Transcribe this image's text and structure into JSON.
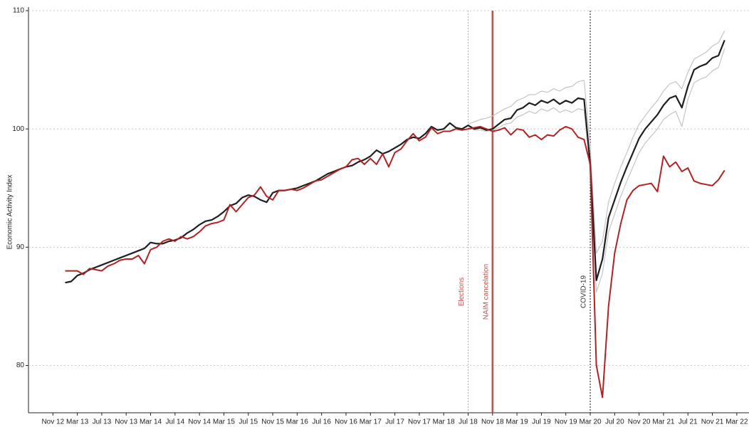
{
  "chart_data": {
    "type": "line",
    "y_label": "Economic Activity Index",
    "x": [
      "2013-01",
      "2013-02",
      "2013-03",
      "2013-04",
      "2013-05",
      "2013-06",
      "2013-07",
      "2013-08",
      "2013-09",
      "2013-10",
      "2013-11",
      "2013-12",
      "2014-01",
      "2014-02",
      "2014-03",
      "2014-04",
      "2014-05",
      "2014-06",
      "2014-07",
      "2014-08",
      "2014-09",
      "2014-10",
      "2014-11",
      "2014-12",
      "2015-01",
      "2015-02",
      "2015-03",
      "2015-04",
      "2015-05",
      "2015-06",
      "2015-07",
      "2015-08",
      "2015-09",
      "2015-10",
      "2015-11",
      "2015-12",
      "2016-01",
      "2016-02",
      "2016-03",
      "2016-04",
      "2016-05",
      "2016-06",
      "2016-07",
      "2016-08",
      "2016-09",
      "2016-10",
      "2016-11",
      "2016-12",
      "2017-01",
      "2017-02",
      "2017-03",
      "2017-04",
      "2017-05",
      "2017-06",
      "2017-07",
      "2017-08",
      "2017-09",
      "2017-10",
      "2017-11",
      "2017-12",
      "2018-01",
      "2018-02",
      "2018-03",
      "2018-04",
      "2018-05",
      "2018-06",
      "2018-07",
      "2018-08",
      "2018-09",
      "2018-10",
      "2018-11",
      "2018-12",
      "2019-01",
      "2019-02",
      "2019-03",
      "2019-04",
      "2019-05",
      "2019-06",
      "2019-07",
      "2019-08",
      "2019-09",
      "2019-10",
      "2019-11",
      "2019-12",
      "2020-01",
      "2020-02",
      "2020-03",
      "2020-04",
      "2020-05",
      "2020-06",
      "2020-07",
      "2020-08",
      "2020-09",
      "2020-10",
      "2020-11",
      "2020-12",
      "2021-01",
      "2021-02",
      "2021-03",
      "2021-04",
      "2021-05",
      "2021-06",
      "2021-07",
      "2021-08",
      "2021-09",
      "2021-10",
      "2021-11",
      "2021-12",
      "2022-01"
    ],
    "series": [
      {
        "color": "#c4c4c4",
        "width": 1.2,
        "values": [
          null,
          null,
          null,
          null,
          null,
          null,
          null,
          null,
          null,
          null,
          null,
          null,
          null,
          null,
          null,
          null,
          null,
          null,
          null,
          null,
          null,
          null,
          null,
          null,
          null,
          null,
          null,
          null,
          null,
          null,
          null,
          null,
          null,
          null,
          null,
          null,
          null,
          null,
          null,
          null,
          null,
          null,
          null,
          null,
          null,
          null,
          null,
          null,
          null,
          null,
          null,
          null,
          null,
          null,
          null,
          null,
          null,
          null,
          null,
          null,
          null,
          null,
          null,
          null,
          null,
          null,
          100.4,
          100.6,
          100.8,
          100.9,
          101.1,
          101.4,
          101.7,
          101.9,
          102.4,
          102.6,
          102.9,
          102.9,
          103.2,
          103.1,
          103.4,
          103.2,
          103.5,
          103.6,
          104.0,
          104.1,
          98.5,
          89.5,
          90.5,
          93.8,
          95.4,
          96.8,
          98.0,
          99.3,
          100.4,
          101.1,
          101.8,
          102.4,
          103.2,
          103.8,
          104.0,
          103.4,
          104.8,
          105.9,
          106.2,
          106.5,
          107.0,
          107.3,
          108.3
        ]
      },
      {
        "color": "#c4c4c4",
        "width": 1.2,
        "values": [
          null,
          null,
          null,
          null,
          null,
          null,
          null,
          null,
          null,
          null,
          null,
          null,
          null,
          null,
          null,
          null,
          null,
          null,
          null,
          null,
          null,
          null,
          null,
          null,
          null,
          null,
          null,
          null,
          null,
          null,
          null,
          null,
          null,
          null,
          null,
          null,
          null,
          null,
          null,
          null,
          null,
          null,
          null,
          null,
          null,
          null,
          null,
          null,
          null,
          null,
          null,
          null,
          null,
          null,
          null,
          null,
          null,
          null,
          null,
          null,
          null,
          null,
          null,
          null,
          null,
          null,
          100.1,
          99.9,
          99.9,
          99.8,
          99.9,
          100.1,
          100.4,
          100.5,
          101.0,
          101.2,
          101.5,
          101.3,
          101.7,
          101.5,
          101.8,
          101.4,
          101.6,
          101.4,
          101.7,
          101.6,
          96.4,
          86.2,
          87.8,
          91.3,
          92.8,
          94.3,
          95.6,
          96.8,
          98.0,
          98.8,
          99.4,
          100.0,
          100.8,
          101.2,
          101.5,
          100.2,
          102.5,
          103.9,
          104.2,
          104.4,
          104.9,
          105.2,
          106.8
        ]
      },
      {
        "color": "#1e1e1e",
        "width": 2.2,
        "values": [
          87.0,
          87.1,
          87.6,
          87.8,
          88.1,
          88.3,
          88.5,
          88.7,
          88.9,
          89.1,
          89.3,
          89.5,
          89.7,
          89.9,
          90.4,
          90.3,
          90.3,
          90.5,
          90.6,
          90.8,
          91.2,
          91.5,
          91.9,
          92.2,
          92.3,
          92.6,
          93.0,
          93.5,
          93.7,
          94.2,
          94.4,
          94.3,
          94.0,
          93.8,
          94.6,
          94.8,
          94.8,
          94.9,
          95.0,
          95.2,
          95.4,
          95.6,
          95.9,
          96.2,
          96.4,
          96.6,
          96.8,
          96.9,
          97.2,
          97.4,
          97.7,
          98.2,
          97.9,
          98.1,
          98.4,
          98.7,
          99.1,
          99.3,
          99.2,
          99.6,
          100.2,
          99.9,
          100.0,
          100.5,
          100.1,
          100.0,
          100.3,
          100.0,
          100.1,
          99.9,
          100.0,
          100.4,
          100.8,
          100.9,
          101.6,
          101.8,
          102.2,
          102.0,
          102.4,
          102.2,
          102.5,
          102.1,
          102.4,
          102.2,
          102.6,
          102.5,
          97.0,
          87.2,
          89.0,
          92.5,
          94.0,
          95.5,
          96.8,
          98.0,
          99.2,
          100.0,
          100.6,
          101.2,
          102.0,
          102.6,
          102.8,
          101.8,
          103.6,
          105.0,
          105.3,
          105.5,
          106.0,
          106.2,
          107.5
        ]
      },
      {
        "color": "#b22222",
        "width": 2,
        "values": [
          88.0,
          88.0,
          88.0,
          87.7,
          88.2,
          88.1,
          88.0,
          88.4,
          88.6,
          88.9,
          89.0,
          89.0,
          89.3,
          88.6,
          89.8,
          90.0,
          90.5,
          90.7,
          90.5,
          90.9,
          90.7,
          90.9,
          91.3,
          91.8,
          92.0,
          92.1,
          92.3,
          93.6,
          93.0,
          93.6,
          94.2,
          94.4,
          95.1,
          94.3,
          94.0,
          94.8,
          94.8,
          94.9,
          94.8,
          95.0,
          95.3,
          95.6,
          95.7,
          96.0,
          96.3,
          96.6,
          96.8,
          97.4,
          97.5,
          97.0,
          97.5,
          97.0,
          97.9,
          96.8,
          98.0,
          98.3,
          99.0,
          99.6,
          99.0,
          99.3,
          100.1,
          99.6,
          99.8,
          99.8,
          100.0,
          99.9,
          100.0,
          100.1,
          100.2,
          100.0,
          99.8,
          99.9,
          100.1,
          99.5,
          100.0,
          99.9,
          99.3,
          99.5,
          99.1,
          99.5,
          99.4,
          99.9,
          100.2,
          100.0,
          99.3,
          99.1,
          97.0,
          80.0,
          77.3,
          85.0,
          89.5,
          92.0,
          94.0,
          94.8,
          95.2,
          95.3,
          95.4,
          94.7,
          97.7,
          96.8,
          97.2,
          96.4,
          96.7,
          95.6,
          95.4,
          95.3,
          95.2,
          95.7,
          96.5
        ]
      }
    ],
    "events": [
      {
        "x": "2018-07",
        "label": "Elections",
        "color": "#bbbbbb",
        "text_color": "#c0504d",
        "dashed": true
      },
      {
        "x": "2018-11",
        "label": "NAIM cancelation",
        "color": "#c0504d",
        "text_color": "#c0504d",
        "dashed": false
      },
      {
        "x": "2020-03",
        "label": "COVID-19",
        "color": "#333333",
        "text_color": "#333333",
        "dashed": true
      }
    ],
    "xlim": [
      "2012-07",
      "2022-05"
    ],
    "xticks": [
      {
        "value": "2012-11",
        "label": "Nov 12"
      },
      {
        "value": "2013-03",
        "label": "Mar 13"
      },
      {
        "value": "2013-07",
        "label": "Jul 13"
      },
      {
        "value": "2013-11",
        "label": "Nov 13"
      },
      {
        "value": "2014-03",
        "label": "Mar 14"
      },
      {
        "value": "2014-07",
        "label": "Jul 14"
      },
      {
        "value": "2014-11",
        "label": "Nov 14"
      },
      {
        "value": "2015-03",
        "label": "Mar 15"
      },
      {
        "value": "2015-07",
        "label": "Jul 15"
      },
      {
        "value": "2015-11",
        "label": "Nov 15"
      },
      {
        "value": "2016-03",
        "label": "Mar 16"
      },
      {
        "value": "2016-07",
        "label": "Jul 16"
      },
      {
        "value": "2016-11",
        "label": "Nov 16"
      },
      {
        "value": "2017-03",
        "label": "Mar 17"
      },
      {
        "value": "2017-07",
        "label": "Jul 17"
      },
      {
        "value": "2017-11",
        "label": "Nov 17"
      },
      {
        "value": "2018-03",
        "label": "Mar 18"
      },
      {
        "value": "2018-07",
        "label": "Jul 18"
      },
      {
        "value": "2018-11",
        "label": "Nov 18"
      },
      {
        "value": "2019-03",
        "label": "Mar 19"
      },
      {
        "value": "2019-07",
        "label": "Jul 19"
      },
      {
        "value": "2019-11",
        "label": "Nov 19"
      },
      {
        "value": "2020-03",
        "label": "Mar 20"
      },
      {
        "value": "2020-07",
        "label": "Jul 20"
      },
      {
        "value": "2020-11",
        "label": "Nov 20"
      },
      {
        "value": "2021-03",
        "label": "Mar 21"
      },
      {
        "value": "2021-07",
        "label": "Jul 21"
      },
      {
        "value": "2021-11",
        "label": "Nov 21"
      },
      {
        "value": "2022-03",
        "label": "Mar 22"
      }
    ],
    "ylim": [
      76,
      110
    ],
    "yticks": [
      80,
      90,
      100,
      110
    ],
    "grid": true
  }
}
